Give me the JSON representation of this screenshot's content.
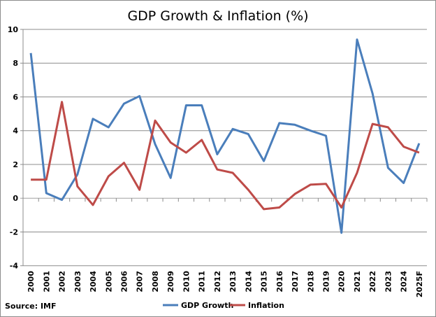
{
  "chart_data": {
    "type": "line",
    "title": "GDP Growth & Inflation (%)",
    "source": "Source: IMF",
    "xlabel": "",
    "ylabel": "",
    "ylim": [
      -4,
      10
    ],
    "yticks": [
      10,
      8,
      6,
      4,
      2,
      0,
      -2,
      -4
    ],
    "grid": true,
    "legend_position": "bottom",
    "categories": [
      "2000",
      "2001",
      "2002",
      "2003",
      "2004",
      "2005",
      "2006",
      "2007",
      "2008",
      "2009",
      "2010",
      "2011",
      "2012",
      "2013",
      "2014",
      "2015",
      "2016",
      "2017",
      "2018",
      "2019",
      "2020",
      "2021",
      "2022",
      "2023",
      "2024",
      "2025F"
    ],
    "series": [
      {
        "name": "GDP Growth",
        "color": "#4a7ebb",
        "values": [
          8.6,
          0.3,
          -0.1,
          1.4,
          4.7,
          4.2,
          5.6,
          6.05,
          3.2,
          1.2,
          5.5,
          5.5,
          2.6,
          4.1,
          3.8,
          2.2,
          4.45,
          4.35,
          4.0,
          3.7,
          -2.05,
          9.4,
          6.2,
          1.8,
          0.9,
          3.25
        ]
      },
      {
        "name": "Inflation",
        "color": "#be4b48",
        "values": [
          1.1,
          1.1,
          5.7,
          0.7,
          -0.4,
          1.3,
          2.1,
          0.5,
          4.6,
          3.3,
          2.7,
          3.45,
          1.7,
          1.5,
          0.5,
          -0.65,
          -0.55,
          0.25,
          0.8,
          0.85,
          -0.55,
          1.5,
          4.4,
          4.2,
          3.05,
          2.7
        ]
      }
    ]
  }
}
